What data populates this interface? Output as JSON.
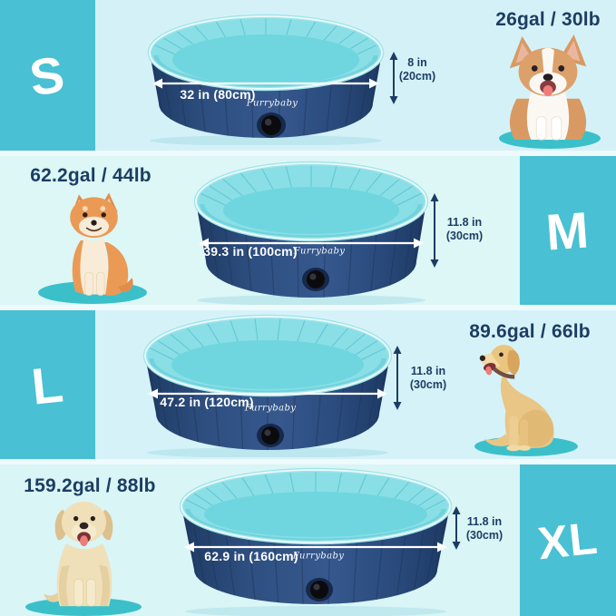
{
  "brand": "Furrybaby",
  "sizes": [
    {
      "label": "S",
      "capacity": "26gal / 30lb",
      "diameter": "32 in (80cm)",
      "height_line1": "8 in",
      "height_line2": "(20cm)",
      "dog": "corgi"
    },
    {
      "label": "M",
      "capacity": "62.2gal / 44lb",
      "diameter": "39.3 in (100cm)",
      "height_line1": "11.8 in",
      "height_line2": "(30cm)",
      "dog": "shiba-inu"
    },
    {
      "label": "L",
      "capacity": "89.6gal / 66lb",
      "diameter": "47.2 in (120cm)",
      "height_line1": "11.8 in",
      "height_line2": "(30cm)",
      "dog": "golden-retriever"
    },
    {
      "label": "XL",
      "capacity": "159.2gal / 88lb",
      "diameter": "62.9 in (160cm)",
      "height_line1": "11.8 in",
      "height_line2": "(30cm)",
      "dog": "labrador-retriever"
    }
  ],
  "colors": {
    "accent_block": "#49c0d3",
    "navy_text": "#1c3d63",
    "pool_wall": "#2e4f80",
    "pool_interior": "#8adfe6",
    "pool_floor": "#6fd6df",
    "mat": "#3bc0ca",
    "row_background": "#d6f2f8"
  }
}
